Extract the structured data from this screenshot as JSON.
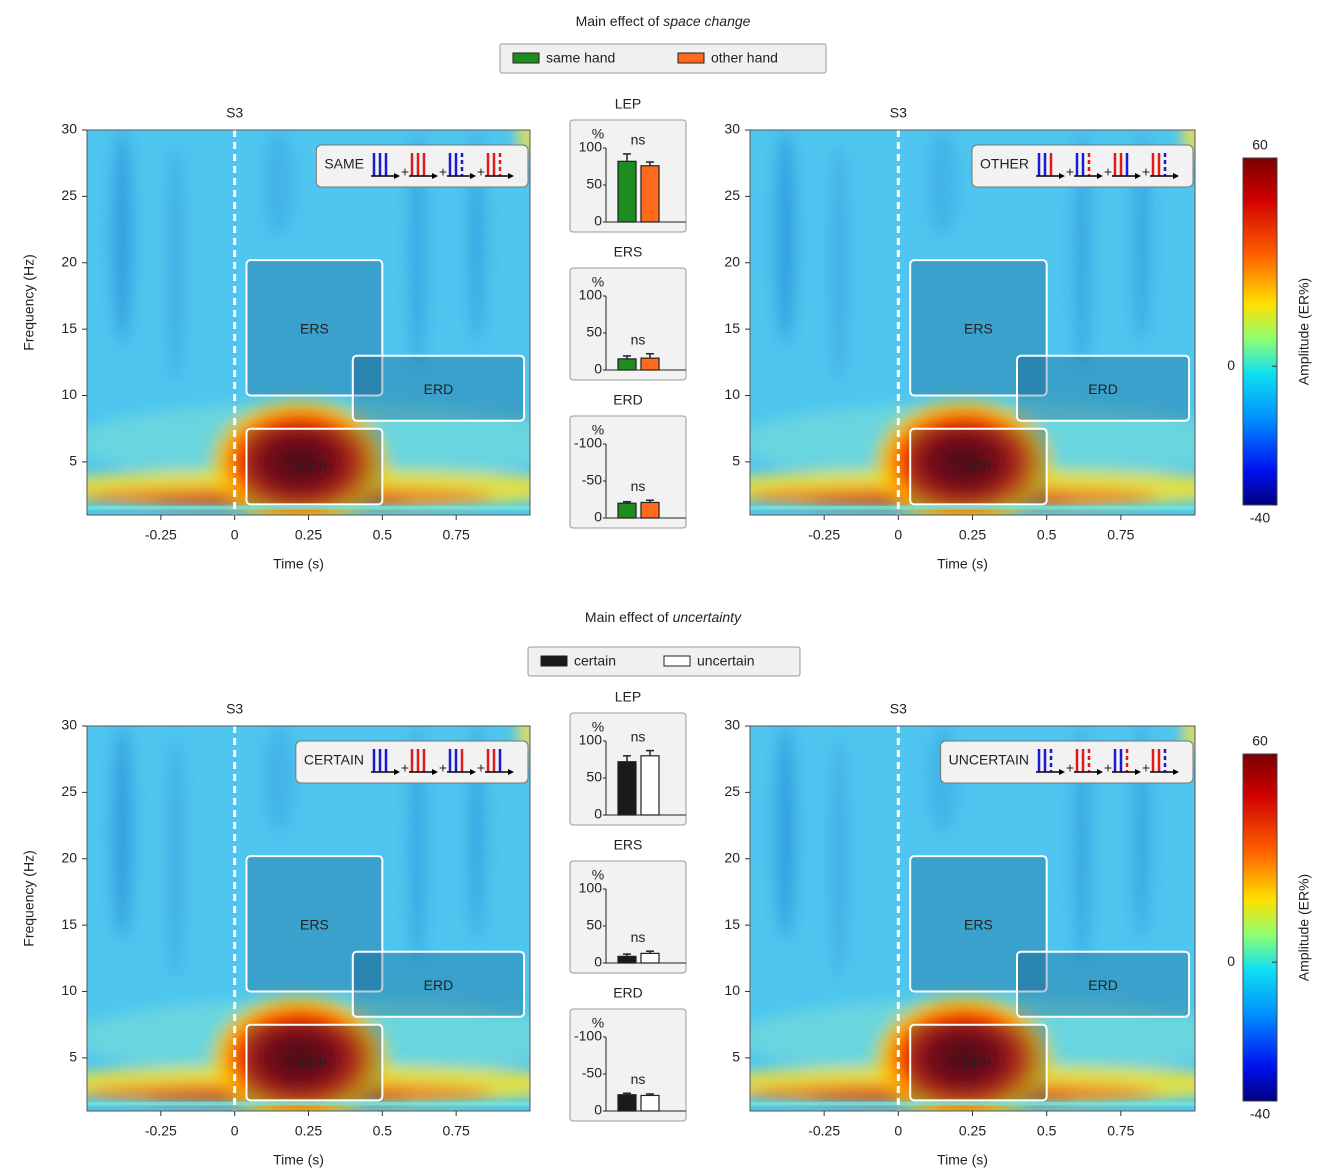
{
  "titles": [
    {
      "text": "Main effect of ",
      "emphasis": "space change"
    },
    {
      "text": "Main effect of ",
      "emphasis": "uncertainty"
    }
  ],
  "chart_data": [
    {
      "type": "heatmap",
      "condition": "SAME",
      "marker": {
        "label": "S3",
        "x": 0
      },
      "regions": [
        "ERS",
        "ERD",
        "LEP"
      ],
      "xlabel": "Time (s)",
      "ylabel": "Frequency (Hz)",
      "xlim": [
        -0.5,
        1.0
      ],
      "ylim": [
        1,
        30
      ],
      "xticks": [
        -0.25,
        0,
        0.25,
        0.5,
        0.75
      ],
      "yticks": [
        5,
        10,
        15,
        20,
        25,
        30
      ]
    },
    {
      "type": "bar",
      "title": "LEP",
      "ylabel": "%",
      "annotation": "ns",
      "ylim": [
        0,
        100
      ],
      "yticks": [
        0,
        50,
        100
      ],
      "series": [
        {
          "name": "same hand",
          "color": "#1e8c1e",
          "values": [
            82
          ],
          "errors": [
            10
          ]
        },
        {
          "name": "other hand",
          "color": "#ff6a1c",
          "values": [
            76
          ],
          "errors": [
            5
          ]
        }
      ]
    },
    {
      "type": "bar",
      "title": "ERS",
      "ylabel": "%",
      "annotation": "ns",
      "ylim": [
        0,
        100
      ],
      "yticks": [
        0,
        50,
        100
      ],
      "series": [
        {
          "name": "same hand",
          "color": "#1e8c1e",
          "values": [
            15
          ],
          "errors": [
            4
          ]
        },
        {
          "name": "other hand",
          "color": "#ff6a1c",
          "values": [
            16
          ],
          "errors": [
            6
          ]
        }
      ]
    },
    {
      "type": "bar",
      "title": "ERD",
      "ylabel": "%",
      "annotation": "ns",
      "ylim": [
        0,
        -100
      ],
      "yticks": [
        0,
        -50,
        -100
      ],
      "series": [
        {
          "name": "same hand",
          "color": "#1e8c1e",
          "values": [
            -20
          ],
          "errors": [
            2
          ]
        },
        {
          "name": "other hand",
          "color": "#ff6a1c",
          "values": [
            -21
          ],
          "errors": [
            3
          ]
        }
      ]
    },
    {
      "type": "heatmap",
      "condition": "OTHER",
      "marker": {
        "label": "S3",
        "x": 0
      },
      "regions": [
        "ERS",
        "ERD",
        "LEP"
      ],
      "xlabel": "Time (s)",
      "xlim": [
        -0.5,
        1.0
      ],
      "ylim": [
        1,
        30
      ],
      "xticks": [
        -0.25,
        0,
        0.25,
        0.5,
        0.75
      ],
      "yticks": [
        5,
        10,
        15,
        20,
        25,
        30
      ],
      "colorbar": {
        "label": "Amplitude (ER%)",
        "lim": [
          -40,
          60
        ],
        "ticks": [
          -40,
          0,
          60
        ]
      }
    },
    {
      "type": "heatmap",
      "condition": "CERTAIN",
      "marker": {
        "label": "S3",
        "x": 0
      },
      "regions": [
        "ERS",
        "ERD",
        "LEP"
      ],
      "xlabel": "Time (s)",
      "ylabel": "Frequency (Hz)",
      "xlim": [
        -0.5,
        1.0
      ],
      "ylim": [
        1,
        30
      ],
      "xticks": [
        -0.25,
        0,
        0.25,
        0.5,
        0.75
      ],
      "yticks": [
        5,
        10,
        15,
        20,
        25,
        30
      ]
    },
    {
      "type": "bar",
      "title": "LEP",
      "ylabel": "%",
      "annotation": "ns",
      "ylim": [
        0,
        100
      ],
      "yticks": [
        0,
        50,
        100
      ],
      "series": [
        {
          "name": "certain",
          "color": "#1a1a1a",
          "values": [
            72
          ],
          "errors": [
            8
          ]
        },
        {
          "name": "uncertain",
          "color": "#ffffff",
          "values": [
            80
          ],
          "errors": [
            7
          ]
        }
      ]
    },
    {
      "type": "bar",
      "title": "ERS",
      "ylabel": "%",
      "annotation": "ns",
      "ylim": [
        0,
        100
      ],
      "yticks": [
        0,
        50,
        100
      ],
      "series": [
        {
          "name": "certain",
          "color": "#1a1a1a",
          "values": [
            9
          ],
          "errors": [
            3
          ]
        },
        {
          "name": "uncertain",
          "color": "#ffffff",
          "values": [
            13
          ],
          "errors": [
            3
          ]
        }
      ]
    },
    {
      "type": "bar",
      "title": "ERD",
      "ylabel": "%",
      "annotation": "ns",
      "ylim": [
        0,
        -100
      ],
      "yticks": [
        0,
        -50,
        -100
      ],
      "series": [
        {
          "name": "certain",
          "color": "#1a1a1a",
          "values": [
            -22
          ],
          "errors": [
            2
          ]
        },
        {
          "name": "uncertain",
          "color": "#ffffff",
          "values": [
            -21
          ],
          "errors": [
            2
          ]
        }
      ]
    },
    {
      "type": "heatmap",
      "condition": "UNCERTAIN",
      "marker": {
        "label": "S3",
        "x": 0
      },
      "regions": [
        "ERS",
        "ERD",
        "LEP"
      ],
      "xlabel": "Time (s)",
      "xlim": [
        -0.5,
        1.0
      ],
      "ylim": [
        1,
        30
      ],
      "xticks": [
        -0.25,
        0,
        0.25,
        0.5,
        0.75
      ],
      "yticks": [
        5,
        10,
        15,
        20,
        25,
        30
      ],
      "colorbar": {
        "label": "Amplitude (ER%)",
        "lim": [
          -40,
          60
        ],
        "ticks": [
          -40,
          0,
          60
        ]
      }
    }
  ]
}
